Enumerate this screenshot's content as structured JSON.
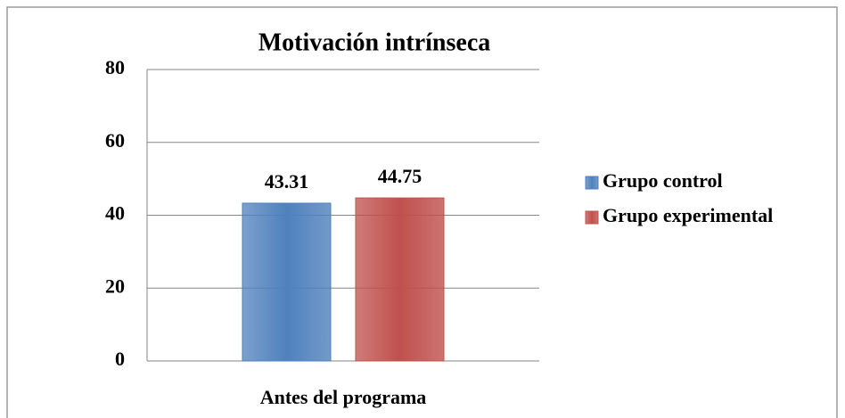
{
  "chart_data": {
    "type": "bar",
    "title": "Motivación intrínseca",
    "categories": [
      "Antes del programa"
    ],
    "series": [
      {
        "name": "Grupo control",
        "color": "#4f81bd",
        "values": [
          43.31
        ]
      },
      {
        "name": "Grupo experimental",
        "color": "#c0504d",
        "values": [
          44.75
        ]
      }
    ],
    "ylim": [
      0,
      80
    ],
    "yticks": [
      0,
      20,
      40,
      60,
      80
    ],
    "grid": true,
    "legend": "right"
  }
}
